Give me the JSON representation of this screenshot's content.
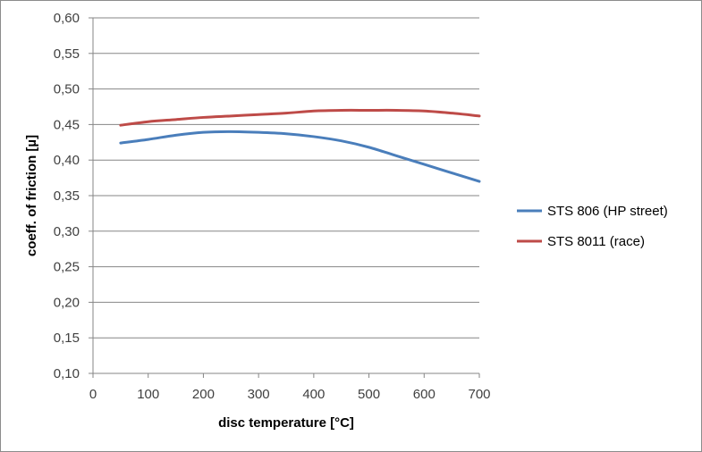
{
  "chart_data": {
    "type": "line",
    "xlabel": "disc temperature [°C]",
    "ylabel": "coeff. of friction [µ]",
    "xlim": [
      0,
      700
    ],
    "ylim": [
      0.1,
      0.6
    ],
    "x_ticks": [
      "0",
      "100",
      "200",
      "300",
      "400",
      "500",
      "600",
      "700"
    ],
    "y_ticks": [
      "0,10",
      "0,15",
      "0,20",
      "0,25",
      "0,30",
      "0,35",
      "0,40",
      "0,45",
      "0,50",
      "0,55",
      "0,60"
    ],
    "grid": "horizontal",
    "legend_position": "right",
    "series": [
      {
        "name": "STS 806 (HP street)",
        "color": "#4a7ebb",
        "x": [
          50,
          100,
          150,
          200,
          250,
          300,
          350,
          400,
          450,
          500,
          550,
          600,
          650,
          700
        ],
        "values": [
          0.424,
          0.429,
          0.435,
          0.439,
          0.44,
          0.439,
          0.437,
          0.433,
          0.427,
          0.418,
          0.406,
          0.394,
          0.382,
          0.37
        ]
      },
      {
        "name": "STS 8011 (race)",
        "color": "#be4b48",
        "x": [
          50,
          100,
          150,
          200,
          250,
          300,
          350,
          400,
          450,
          500,
          550,
          600,
          650,
          700
        ],
        "values": [
          0.449,
          0.454,
          0.457,
          0.46,
          0.462,
          0.464,
          0.466,
          0.469,
          0.47,
          0.47,
          0.47,
          0.469,
          0.466,
          0.462
        ]
      }
    ]
  }
}
